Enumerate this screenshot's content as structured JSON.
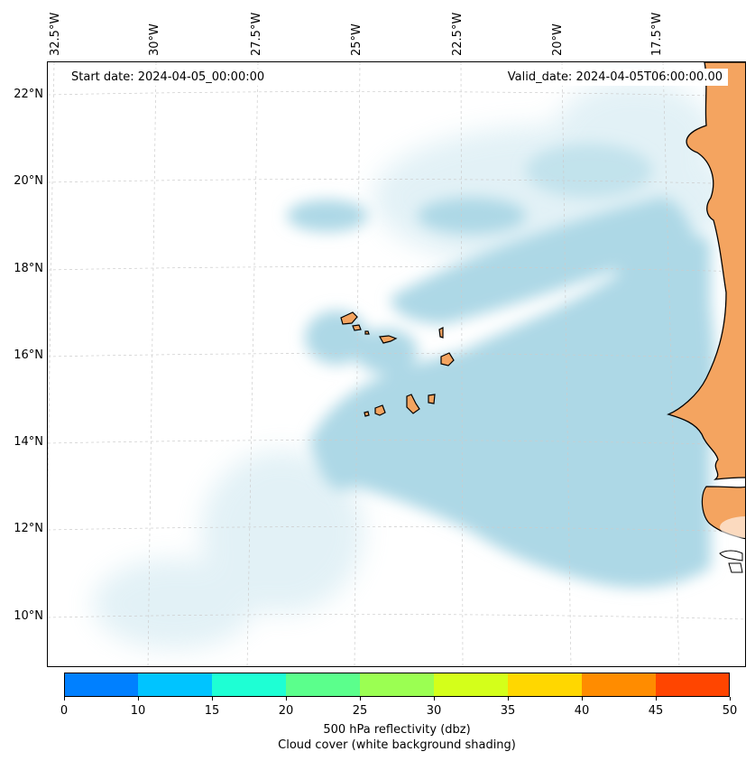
{
  "header": {
    "start_date": "Start date: 2024-04-05_00:00:00",
    "valid_date": "Valid_date: 2024-04-05T06:00:00.00"
  },
  "axes": {
    "lon_labels": [
      "32.5°W",
      "30°W",
      "27.5°W",
      "25°W",
      "22.5°W",
      "20°W",
      "17.5°W"
    ],
    "lat_labels": [
      "22°N",
      "20°N",
      "18°N",
      "16°N",
      "14°N",
      "12°N",
      "10°N"
    ]
  },
  "colorbar": {
    "ticks": [
      "0",
      "10",
      "15",
      "20",
      "25",
      "30",
      "35",
      "40",
      "45",
      "50"
    ],
    "colors": [
      "#0080ff",
      "#00c4ff",
      "#1effd4",
      "#5bff8c",
      "#9bff52",
      "#d4ff1a",
      "#ffd700",
      "#ff8c00",
      "#ff4500"
    ],
    "label_line1": "500 hPa reflectivity (dbz)",
    "label_line2": "Cloud cover (white background shading)"
  },
  "map": {
    "land_color": "#f4a460",
    "cloud_color": "#add8e6",
    "ocean_color": "#ffffff",
    "grid_color": "#cccccc"
  }
}
